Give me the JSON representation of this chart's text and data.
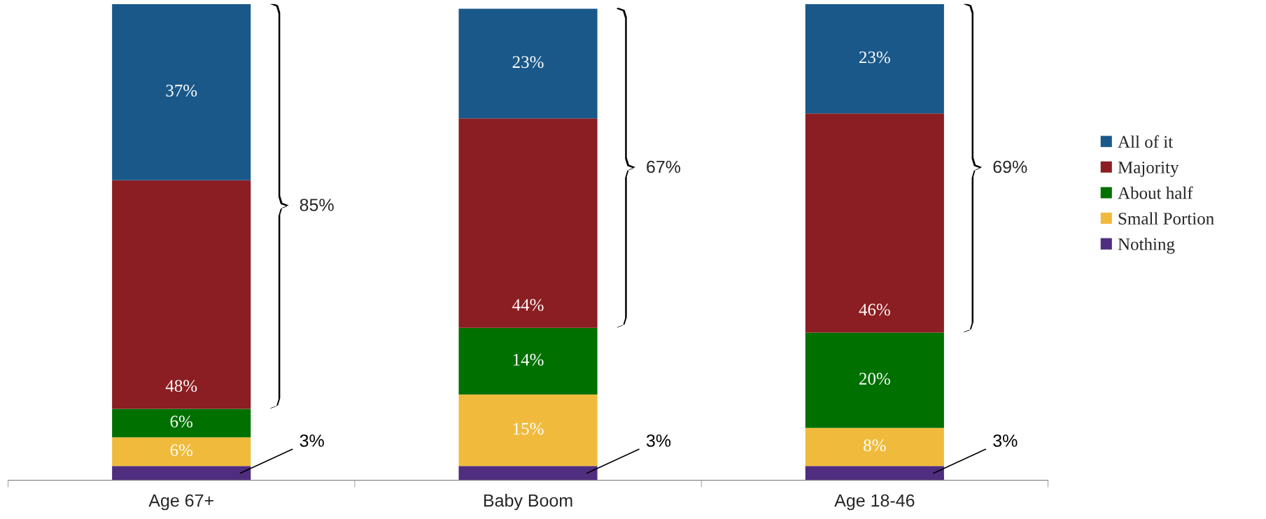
{
  "chart_data": {
    "type": "bar",
    "stacked": true,
    "categories": [
      "Age 67+",
      "Baby Boom",
      "Age 18-46"
    ],
    "series": [
      {
        "name": "Nothing",
        "color": "#4f2d7f",
        "values": [
          3,
          3,
          3
        ],
        "value_labels": [
          "3%",
          "3%",
          "3%"
        ]
      },
      {
        "name": "Small Portion",
        "color": "#f0bb3c",
        "values": [
          6,
          15,
          8
        ],
        "value_labels": [
          "6%",
          "15%",
          "8%"
        ]
      },
      {
        "name": "About half",
        "color": "#007000",
        "values": [
          6,
          14,
          20
        ],
        "value_labels": [
          "6%",
          "14%",
          "20%"
        ]
      },
      {
        "name": "Majority",
        "color": "#8b1e22",
        "values": [
          48,
          44,
          46
        ],
        "value_labels": [
          "48%",
          "44%",
          "46%"
        ]
      },
      {
        "name": "All of it",
        "color": "#1a5889",
        "values": [
          37,
          23,
          23
        ],
        "value_labels": [
          "37%",
          "23%",
          "23%"
        ]
      }
    ],
    "legend": "right",
    "grid": false,
    "annotations": [
      "85%",
      "67%",
      "69%"
    ]
  }
}
